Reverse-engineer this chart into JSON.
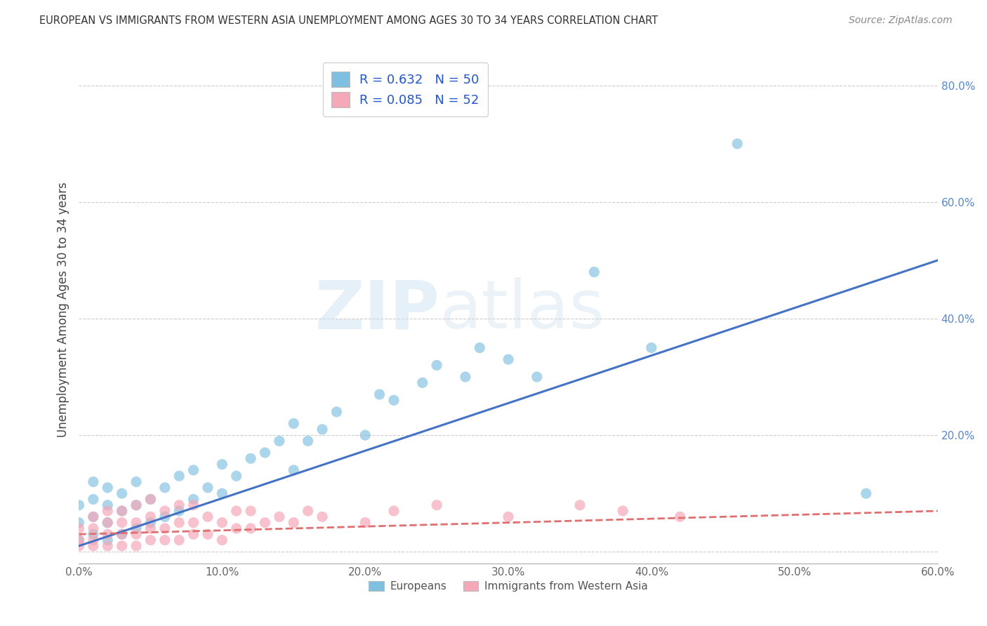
{
  "title": "EUROPEAN VS IMMIGRANTS FROM WESTERN ASIA UNEMPLOYMENT AMONG AGES 30 TO 34 YEARS CORRELATION CHART",
  "source": "Source: ZipAtlas.com",
  "ylabel": "Unemployment Among Ages 30 to 34 years",
  "xmin": 0.0,
  "xmax": 0.6,
  "ymin": -0.02,
  "ymax": 0.85,
  "xticks": [
    0.0,
    0.1,
    0.2,
    0.3,
    0.4,
    0.5,
    0.6
  ],
  "xtick_labels": [
    "0.0%",
    "10.0%",
    "20.0%",
    "30.0%",
    "40.0%",
    "50.0%",
    "60.0%"
  ],
  "yticks": [
    0.0,
    0.2,
    0.4,
    0.6,
    0.8
  ],
  "ytick_labels": [
    "",
    "20.0%",
    "40.0%",
    "60.0%",
    "80.0%"
  ],
  "blue_scatter_color": "#7fbfdf",
  "pink_scatter_color": "#f4a8b8",
  "blue_line_color": "#4472c4",
  "pink_line_color": "#e07070",
  "watermark_left": "ZIP",
  "watermark_right": "atlas",
  "background_color": "#ffffff",
  "grid_color": "#cccccc",
  "eu_R": 0.632,
  "eu_N": 50,
  "wa_R": 0.085,
  "wa_N": 52,
  "europeans_x": [
    0.0,
    0.0,
    0.0,
    0.01,
    0.01,
    0.01,
    0.01,
    0.02,
    0.02,
    0.02,
    0.02,
    0.03,
    0.03,
    0.03,
    0.04,
    0.04,
    0.04,
    0.05,
    0.05,
    0.06,
    0.06,
    0.07,
    0.07,
    0.08,
    0.08,
    0.09,
    0.1,
    0.1,
    0.11,
    0.12,
    0.13,
    0.14,
    0.15,
    0.15,
    0.16,
    0.17,
    0.18,
    0.2,
    0.21,
    0.22,
    0.24,
    0.25,
    0.27,
    0.28,
    0.3,
    0.32,
    0.36,
    0.4,
    0.46,
    0.55
  ],
  "europeans_y": [
    0.02,
    0.05,
    0.08,
    0.03,
    0.06,
    0.09,
    0.12,
    0.02,
    0.05,
    0.08,
    0.11,
    0.03,
    0.07,
    0.1,
    0.04,
    0.08,
    0.12,
    0.05,
    0.09,
    0.06,
    0.11,
    0.07,
    0.13,
    0.09,
    0.14,
    0.11,
    0.1,
    0.15,
    0.13,
    0.16,
    0.17,
    0.19,
    0.14,
    0.22,
    0.19,
    0.21,
    0.24,
    0.2,
    0.27,
    0.26,
    0.29,
    0.32,
    0.3,
    0.35,
    0.33,
    0.3,
    0.48,
    0.35,
    0.7,
    0.1
  ],
  "western_asia_x": [
    0.0,
    0.0,
    0.0,
    0.01,
    0.01,
    0.01,
    0.01,
    0.02,
    0.02,
    0.02,
    0.02,
    0.03,
    0.03,
    0.03,
    0.03,
    0.04,
    0.04,
    0.04,
    0.04,
    0.05,
    0.05,
    0.05,
    0.05,
    0.06,
    0.06,
    0.06,
    0.07,
    0.07,
    0.07,
    0.08,
    0.08,
    0.08,
    0.09,
    0.09,
    0.1,
    0.1,
    0.11,
    0.11,
    0.12,
    0.12,
    0.13,
    0.14,
    0.15,
    0.16,
    0.17,
    0.2,
    0.22,
    0.25,
    0.3,
    0.35,
    0.38,
    0.42
  ],
  "western_asia_y": [
    0.01,
    0.02,
    0.04,
    0.01,
    0.02,
    0.04,
    0.06,
    0.01,
    0.03,
    0.05,
    0.07,
    0.01,
    0.03,
    0.05,
    0.07,
    0.01,
    0.03,
    0.05,
    0.08,
    0.02,
    0.04,
    0.06,
    0.09,
    0.02,
    0.04,
    0.07,
    0.02,
    0.05,
    0.08,
    0.03,
    0.05,
    0.08,
    0.03,
    0.06,
    0.02,
    0.05,
    0.04,
    0.07,
    0.04,
    0.07,
    0.05,
    0.06,
    0.05,
    0.07,
    0.06,
    0.05,
    0.07,
    0.08,
    0.06,
    0.08,
    0.07,
    0.06
  ]
}
